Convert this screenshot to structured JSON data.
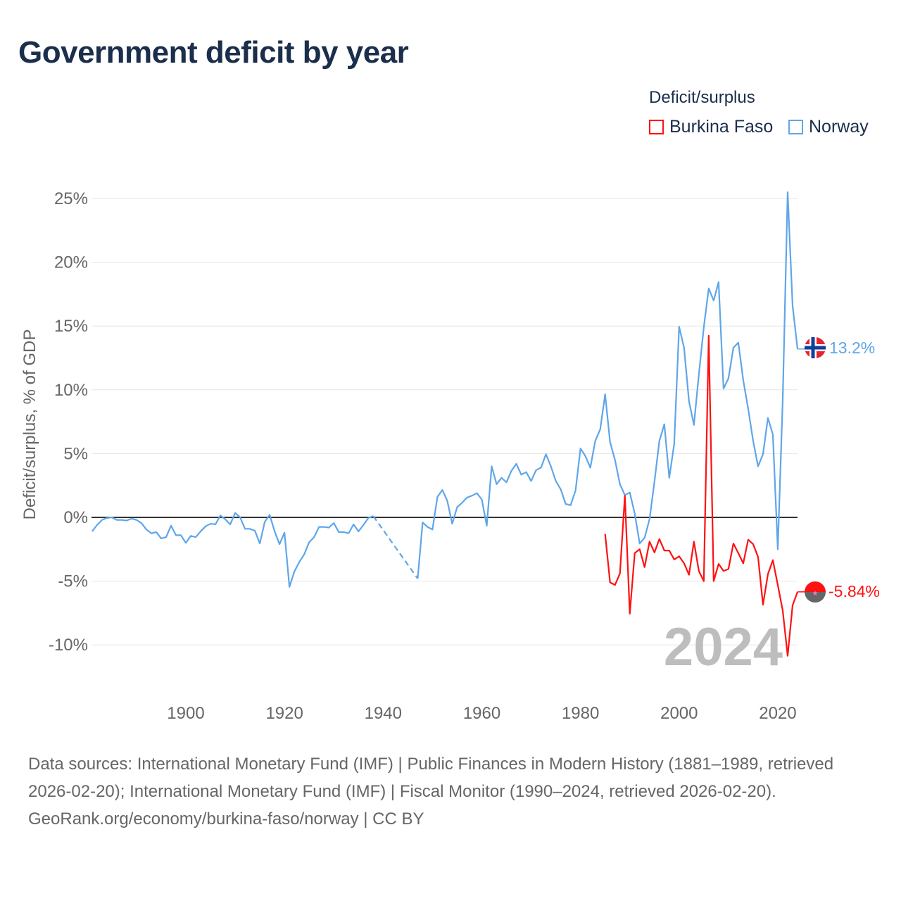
{
  "title": "Government deficit by year",
  "legend": {
    "title": "Deficit/surplus",
    "items": [
      {
        "name": "Burkina Faso",
        "color": "#ff1111"
      },
      {
        "name": "Norway",
        "color": "#5fa6ea"
      }
    ]
  },
  "year_watermark": "2024",
  "end_labels": {
    "norway": "13.2%",
    "burkina_faso": "-5.84%"
  },
  "footer": {
    "sources": "Data sources: International Monetary Fund (IMF) | Public Finances in Modern History (1881–1989, retrieved 2026-02-20); International Monetary Fund (IMF) | Fiscal Monitor (1990–2024, retrieved 2026-02-20).",
    "credit": "GeoRank.org/economy/burkina-faso/norway | CC BY"
  },
  "chart_data": {
    "type": "line",
    "title": "Government deficit by year",
    "xlabel": "",
    "ylabel": "Deficit/surplus, % of GDP",
    "xlim": [
      1881,
      2024
    ],
    "ylim": [
      -10,
      25
    ],
    "x_ticks": [
      "1900",
      "1920",
      "1940",
      "1960",
      "1980",
      "2000",
      "2020"
    ],
    "x_tick_values": [
      1900,
      1920,
      1940,
      1960,
      1980,
      2000,
      2020
    ],
    "y_ticks": [
      "25%",
      "20%",
      "15%",
      "10%",
      "5%",
      "0%",
      "-5%",
      "-10%"
    ],
    "y_tick_values": [
      25,
      20,
      15,
      10,
      5,
      0,
      -5,
      -10
    ],
    "grid": true,
    "legend_position": "top-right",
    "series": [
      {
        "name": "Norway",
        "color": "#5fa6ea",
        "start_year": 1881,
        "values": [
          -1.1,
          -0.6,
          -0.2,
          -0.05,
          0,
          -0.2,
          -0.2,
          -0.25,
          -0.1,
          -0.2,
          -0.45,
          -0.95,
          -1.25,
          -1.15,
          -1.65,
          -1.55,
          -0.65,
          -1.4,
          -1.4,
          -2.0,
          -1.45,
          -1.55,
          -1.1,
          -0.7,
          -0.5,
          -0.55,
          0.15,
          -0.15,
          -0.55,
          0.35,
          0,
          -0.9,
          -0.9,
          -1.05,
          -2.05,
          -0.35,
          0.2,
          -1.1,
          -2.1,
          -1.2,
          -5.45,
          -4.25,
          -3.5,
          -2.9,
          -1.95,
          -1.55,
          -0.75,
          -0.75,
          -0.8,
          -0.45,
          -1.15,
          -1.15,
          -1.25,
          -0.55,
          -1.1,
          -0.6,
          -0.05,
          0.1,
          null,
          null,
          null,
          null,
          null,
          null,
          null,
          null,
          -4.8,
          -0.4,
          -0.75,
          -0.95,
          1.6,
          2.15,
          1.3,
          -0.5,
          0.8,
          1.15,
          1.55,
          1.7,
          1.9,
          1.4,
          -0.65,
          4.0,
          2.6,
          3.1,
          2.75,
          3.65,
          4.2,
          3.35,
          3.55,
          2.85,
          3.7,
          3.9,
          4.95,
          4.0,
          2.85,
          2.2,
          1.05,
          0.95,
          2.1,
          5.4,
          4.8,
          3.9,
          6.0,
          6.9,
          9.65,
          5.9,
          4.5,
          2.6,
          1.75,
          1.95,
          0.3,
          -2.05,
          -1.6,
          -0.15,
          2.8,
          6.0,
          7.3,
          3.1,
          5.75,
          14.95,
          13.3,
          9.1,
          7.25,
          11.2,
          14.9,
          17.95,
          17.0,
          18.45,
          10.1,
          10.9,
          13.3,
          13.7,
          10.75,
          8.5,
          6.0,
          4.0,
          4.95,
          7.8,
          6.5,
          -2.5,
          9.2,
          25.5,
          16.6,
          13.2
        ]
      },
      {
        "name": "Burkina Faso",
        "color": "#ff1111",
        "start_year": 1985,
        "values": [
          -1.3,
          -5.1,
          -5.3,
          -4.4,
          1.7,
          -7.55,
          -2.8,
          -2.5,
          -3.9,
          -1.9,
          -2.75,
          -1.7,
          -2.6,
          -2.6,
          -3.3,
          -3.05,
          -3.6,
          -4.5,
          -1.9,
          -4.2,
          -5.0,
          14.25,
          -5.0,
          -3.65,
          -4.2,
          -4.05,
          -2.05,
          -2.8,
          -3.6,
          -1.75,
          -2.1,
          -3.1,
          -6.85,
          -4.45,
          -3.35,
          -5.3,
          -7.3,
          -10.85,
          -6.9,
          -5.84
        ]
      }
    ]
  }
}
